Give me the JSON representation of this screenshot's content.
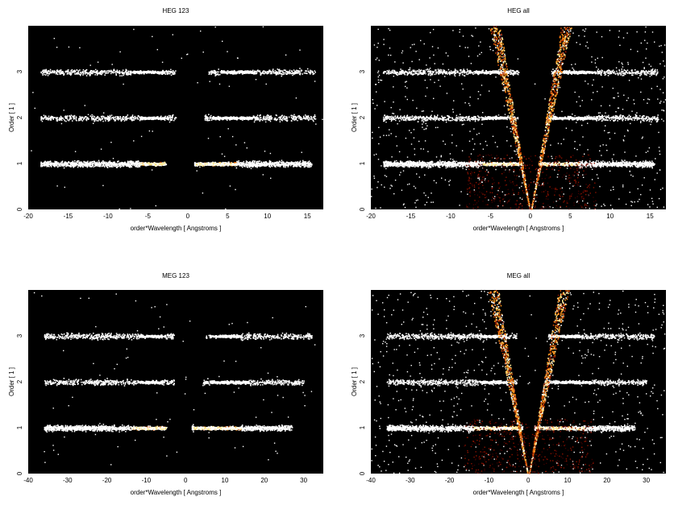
{
  "figure": {
    "background": "#ffffff",
    "plot_background": "#000000",
    "colormap": [
      "#3a0000",
      "#8a1200",
      "#d04a00",
      "#ff9a20",
      "#ffe890",
      "#ffffff"
    ]
  },
  "chart_data": [
    {
      "type": "heatmap",
      "title": "HEG 123",
      "xlabel": "order*Wavelength [ Angstroms ]",
      "ylabel": "Order [ 1 ]",
      "xlim": [
        -20,
        17
      ],
      "ylim": [
        0,
        4
      ],
      "xticks": [
        -20,
        -15,
        -10,
        -5,
        0,
        5,
        10,
        15
      ],
      "yticks": [
        0,
        1,
        2,
        3
      ],
      "grid": false,
      "bands": [
        {
          "order": 1,
          "segments": [
            [
              -18.5,
              -2.8
            ],
            [
              0.8,
              15.5
            ]
          ],
          "bright": [
            [
              -6,
              -1.5
            ],
            [
              1,
              6
            ]
          ],
          "density": "high"
        },
        {
          "order": 2,
          "segments": [
            [
              -18.5,
              -1.5
            ],
            [
              2,
              16
            ]
          ],
          "bright": [
            [
              -6,
              -3
            ],
            [
              3,
              8
            ]
          ],
          "density": "medium"
        },
        {
          "order": 3,
          "segments": [
            [
              -18.5,
              -1.5
            ],
            [
              2.5,
              16
            ]
          ],
          "bright": [
            [
              -7,
              -3
            ],
            [
              4,
              8
            ]
          ],
          "density": "medium"
        }
      ],
      "wedge": false
    },
    {
      "type": "heatmap",
      "title": "HEG all",
      "xlabel": "order*Wavelength [ Angstroms ]",
      "ylabel": "Order [ 1 ]",
      "xlim": [
        -20,
        17
      ],
      "ylim": [
        0,
        4
      ],
      "xticks": [
        -20,
        -15,
        -10,
        -5,
        0,
        5,
        10,
        15
      ],
      "yticks": [
        0,
        1,
        2,
        3
      ],
      "grid": false,
      "bands": [
        {
          "order": 1,
          "segments": [
            [
              -18.5,
              -1
            ],
            [
              1,
              15.5
            ]
          ],
          "bright": [
            [
              -6,
              -1
            ],
            [
              1,
              6
            ]
          ],
          "density": "high"
        },
        {
          "order": 2,
          "segments": [
            [
              -18.5,
              -1.5
            ],
            [
              2,
              16
            ]
          ],
          "bright": [
            [
              -6,
              -3
            ],
            [
              3,
              8
            ]
          ],
          "density": "medium"
        },
        {
          "order": 3,
          "segments": [
            [
              -18.5,
              -1.5
            ],
            [
              2.5,
              16
            ]
          ],
          "bright": [
            [
              -7,
              -3
            ],
            [
              4,
              8
            ]
          ],
          "density": "medium"
        }
      ],
      "wedge": true,
      "wedge_slope": 1.1,
      "background_noise": "high"
    },
    {
      "type": "heatmap",
      "title": "MEG 123",
      "xlabel": "order*Wavelength [ Angstroms ]",
      "ylabel": "Order [ 1 ]",
      "xlim": [
        -40,
        35
      ],
      "ylim": [
        0,
        4
      ],
      "xticks": [
        -40,
        -30,
        -20,
        -10,
        0,
        10,
        20,
        30
      ],
      "yticks": [
        0,
        1,
        2,
        3
      ],
      "grid": false,
      "bands": [
        {
          "order": 1,
          "segments": [
            [
              -36,
              -5
            ],
            [
              1.5,
              27
            ]
          ],
          "bright": [
            [
              -14,
              -3
            ],
            [
              2,
              14
            ]
          ],
          "density": "high"
        },
        {
          "order": 2,
          "segments": [
            [
              -36,
              -3
            ],
            [
              4,
              30
            ]
          ],
          "bright": [
            [
              -12,
              -6
            ],
            [
              6,
              16
            ]
          ],
          "density": "medium"
        },
        {
          "order": 3,
          "segments": [
            [
              -36,
              -3
            ],
            [
              5,
              32
            ]
          ],
          "bright": [
            [
              -12,
              -6
            ],
            [
              6,
              14
            ]
          ],
          "density": "medium"
        }
      ],
      "wedge": false
    },
    {
      "type": "heatmap",
      "title": "MEG all",
      "xlabel": "order*Wavelength [ Angstroms ]",
      "ylabel": "Order [ 1 ]",
      "xlim": [
        -40,
        35
      ],
      "ylim": [
        0,
        4
      ],
      "xticks": [
        -40,
        -30,
        -20,
        -10,
        0,
        10,
        20,
        30
      ],
      "yticks": [
        0,
        1,
        2,
        3
      ],
      "grid": false,
      "bands": [
        {
          "order": 1,
          "segments": [
            [
              -36,
              -1.5
            ],
            [
              1.5,
              27
            ]
          ],
          "bright": [
            [
              -14,
              -2
            ],
            [
              2,
              14
            ]
          ],
          "density": "high"
        },
        {
          "order": 2,
          "segments": [
            [
              -36,
              -3
            ],
            [
              4,
              30
            ]
          ],
          "bright": [
            [
              -12,
              -6
            ],
            [
              6,
              16
            ]
          ],
          "density": "medium"
        },
        {
          "order": 3,
          "segments": [
            [
              -36,
              -3
            ],
            [
              5,
              32
            ]
          ],
          "bright": [
            [
              -12,
              -6
            ],
            [
              6,
              14
            ]
          ],
          "density": "medium"
        }
      ],
      "wedge": true,
      "wedge_slope": 2.2,
      "background_noise": "high"
    }
  ]
}
